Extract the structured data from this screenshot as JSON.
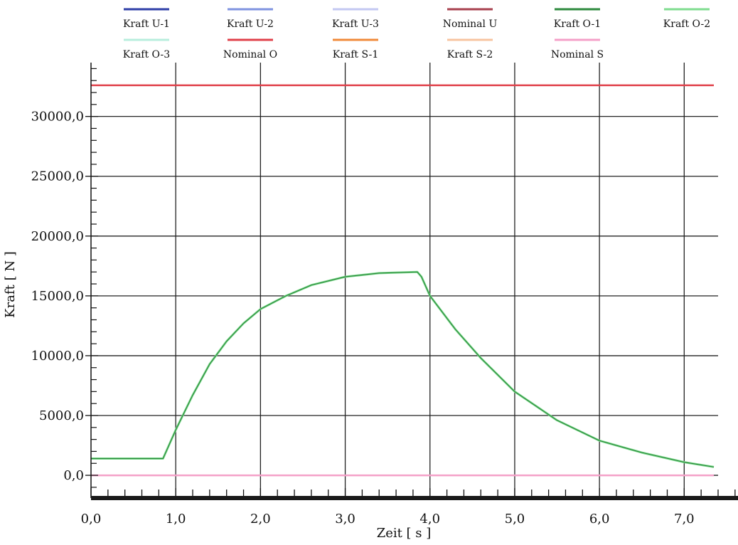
{
  "chart_data": {
    "type": "line",
    "xlabel": "Zeit [ s ]",
    "ylabel": "Kraft [ N ]",
    "xlim": [
      0,
      7.4
    ],
    "ylim": [
      -1900,
      34500
    ],
    "x_ticks": [
      0,
      1,
      2,
      3,
      4,
      5,
      6,
      7
    ],
    "x_tick_labels": [
      "0,0",
      "1,0",
      "2,0",
      "3,0",
      "4,0",
      "5,0",
      "6,0",
      "7,0"
    ],
    "y_ticks": [
      0,
      5000,
      10000,
      15000,
      20000,
      25000,
      30000
    ],
    "y_tick_labels": [
      "0,0",
      "5000,0",
      "10000,0",
      "15000,0",
      "20000,0",
      "25000,0",
      "30000,0"
    ],
    "grid": true,
    "legend_position": "top",
    "legend": [
      {
        "name": "Kraft U-1",
        "color": "#2f3fa8"
      },
      {
        "name": "Kraft U-2",
        "color": "#7f93e0"
      },
      {
        "name": "Kraft U-3",
        "color": "#c3c8f2"
      },
      {
        "name": "Nominal U",
        "color": "#a8404e"
      },
      {
        "name": "Kraft O-1",
        "color": "#2e8a3e"
      },
      {
        "name": "Kraft O-2",
        "color": "#7fdc8f"
      },
      {
        "name": "Kraft O-3",
        "color": "#b8eedd"
      },
      {
        "name": "Nominal O",
        "color": "#e0404a"
      },
      {
        "name": "Kraft S-1",
        "color": "#f08a3a"
      },
      {
        "name": "Kraft S-2",
        "color": "#f7c4a0"
      },
      {
        "name": "Nominal S",
        "color": "#f4a0c8"
      }
    ],
    "series": [
      {
        "name": "Nominal O",
        "color": "#e0404a",
        "width": 2.5,
        "x": [
          0,
          7.35
        ],
        "y": [
          32600,
          32600
        ]
      },
      {
        "name": "Nominal S",
        "color": "#f4a0c8",
        "width": 2.5,
        "x": [
          0,
          7.35
        ],
        "y": [
          0,
          0
        ]
      },
      {
        "name": "Kraft O-2",
        "color": "#7fdc8f",
        "width": 3,
        "x": [
          0,
          0.85,
          1.0,
          1.2,
          1.4,
          1.6,
          1.8,
          2.0,
          2.3,
          2.6,
          3.0,
          3.4,
          3.85,
          3.9,
          4.0,
          4.3,
          4.6,
          5.0,
          5.5,
          6.0,
          6.5,
          7.0,
          7.35
        ],
        "y": [
          1400,
          1400,
          3800,
          6700,
          9300,
          11200,
          12700,
          13900,
          15000,
          15900,
          16600,
          16900,
          17000,
          16600,
          15000,
          12200,
          9800,
          7000,
          4600,
          2900,
          1900,
          1100,
          700
        ]
      },
      {
        "name": "Kraft O-1",
        "color": "#2e8a3e",
        "width": 1.2,
        "x": [
          0,
          0.85,
          1.0,
          1.2,
          1.4,
          1.6,
          1.8,
          2.0,
          2.3,
          2.6,
          3.0,
          3.4,
          3.85,
          3.9,
          4.0,
          4.3,
          4.6,
          5.0,
          5.5,
          6.0,
          6.5,
          7.0,
          7.35
        ],
        "y": [
          1400,
          1400,
          3800,
          6700,
          9300,
          11200,
          12700,
          13900,
          15000,
          15900,
          16600,
          16900,
          17000,
          16600,
          15000,
          12200,
          9800,
          7000,
          4600,
          2900,
          1900,
          1100,
          700
        ]
      }
    ]
  }
}
